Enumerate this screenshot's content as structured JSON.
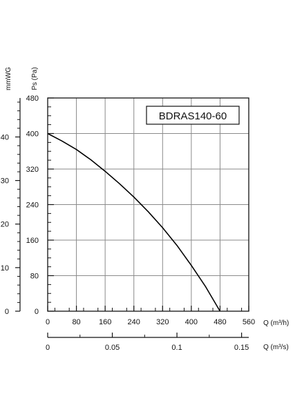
{
  "chart_data": {
    "type": "line",
    "model_label": "BDRAS140-60",
    "x_axis_primary": {
      "label": "Q (m³/h)",
      "range": [
        0,
        560
      ],
      "ticks": [
        "0",
        "80",
        "160",
        "240",
        "320",
        "400",
        "480",
        "560"
      ]
    },
    "x_axis_secondary": {
      "label": "Q (m³/s)",
      "range": [
        0,
        0.15556
      ],
      "ticks": [
        {
          "value": 0,
          "label": "0"
        },
        {
          "value": 0.05,
          "label": "0.05"
        },
        {
          "value": 0.1,
          "label": "0.1"
        },
        {
          "value": 0.15,
          "label": "0.15"
        }
      ]
    },
    "y_axis_primary": {
      "label": "Ps (Pa)",
      "range": [
        0,
        480
      ],
      "ticks": [
        "0",
        "80",
        "160",
        "240",
        "320",
        "400",
        "480"
      ]
    },
    "y_axis_secondary": {
      "label": "mmWG",
      "range": [
        0,
        48.95
      ],
      "ticks": [
        {
          "value": 0,
          "label": "0"
        },
        {
          "value": 10,
          "label": "10"
        },
        {
          "value": 20,
          "label": "20"
        },
        {
          "value": 30,
          "label": "30"
        },
        {
          "value": 40,
          "label": "40"
        }
      ]
    },
    "grid": true,
    "series": [
      {
        "x": [
          0,
          40,
          80,
          120,
          160,
          200,
          240,
          280,
          320,
          360,
          400,
          440,
          480
        ],
        "y": [
          400,
          383,
          364,
          341,
          315,
          287,
          257,
          224,
          188,
          148,
          103,
          55,
          0
        ]
      }
    ]
  }
}
